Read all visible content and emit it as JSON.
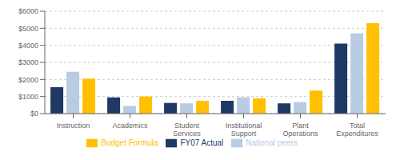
{
  "chart_data": {
    "type": "bar",
    "categories": [
      "Instruction",
      "Academics",
      "Student\nServices",
      "Institutional\nSupport",
      "Plant\nOperations",
      "Total\nExpenditures"
    ],
    "series": [
      {
        "name": "FY07 Actual",
        "color": "#1f3864",
        "values": [
          1550,
          950,
          625,
          750,
          600,
          4100
        ]
      },
      {
        "name": "National peers",
        "color": "#b8cce4",
        "values": [
          2450,
          450,
          600,
          950,
          675,
          4700
        ]
      },
      {
        "name": "Budget Formula",
        "color": "#ffc000",
        "values": [
          2050,
          1000,
          750,
          900,
          1350,
          5300
        ]
      }
    ],
    "ylim": [
      0,
      6000
    ],
    "yticks": [
      {
        "value": 0,
        "label": "$0"
      },
      {
        "value": 1000,
        "label": "$1000"
      },
      {
        "value": 2000,
        "label": "$2000"
      },
      {
        "value": 3000,
        "label": "$3000"
      },
      {
        "value": 4000,
        "label": "$4000"
      },
      {
        "value": 5000,
        "label": "$5000"
      },
      {
        "value": 6000,
        "label": "$6000"
      }
    ],
    "grid": true,
    "legend": "bottom"
  }
}
